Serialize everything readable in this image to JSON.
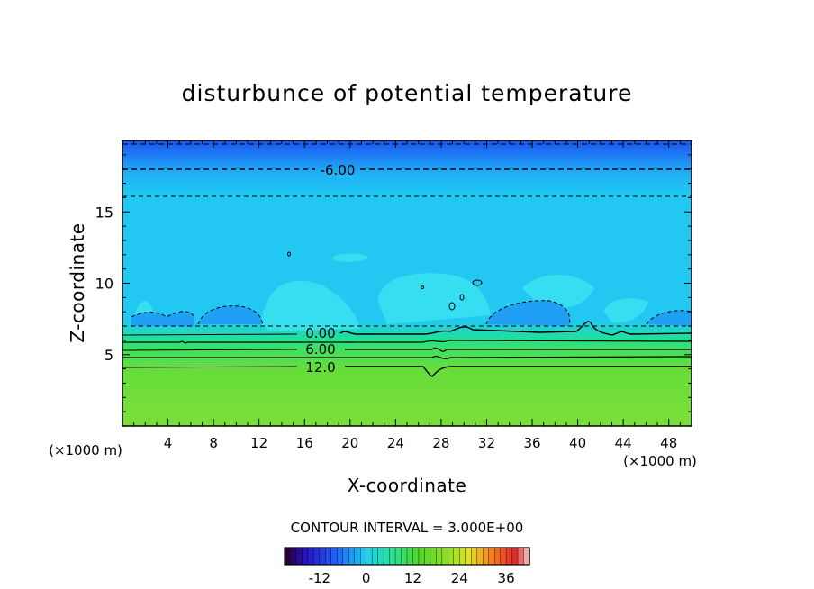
{
  "chart_data": {
    "type": "heatmap",
    "title": "disturbunce of potential temperature",
    "xlabel": "X-coordinate",
    "ylabel": "Z-coordinate",
    "x_unit_left": "(×1000 m)",
    "x_unit_right": "(×1000 m)",
    "xlim": [
      0,
      50
    ],
    "ylim": [
      0,
      20
    ],
    "x_ticks": [
      "4",
      "8",
      "12",
      "16",
      "20",
      "24",
      "28",
      "32",
      "36",
      "40",
      "44",
      "48"
    ],
    "y_ticks": [
      "5",
      "10",
      "15"
    ],
    "contour_interval_label": "CONTOUR INTERVAL = 3.000E+00",
    "contour_labels": [
      {
        "text": "-6.00",
        "x": 19.0,
        "z": 18.0
      },
      {
        "text": "0.00",
        "x": 17.0,
        "z": 6.6
      },
      {
        "text": "6.00",
        "x": 17.0,
        "z": 5.4
      },
      {
        "text": "12.0",
        "x": 17.0,
        "z": 4.1
      }
    ],
    "layers_description_values": {
      "top_blue_min": -9,
      "upper_cyan": -3,
      "green_lower": 12
    },
    "colorbar": {
      "min": -21,
      "max": 42,
      "ticks": [
        "-12",
        "0",
        "12",
        "24",
        "36"
      ]
    }
  }
}
